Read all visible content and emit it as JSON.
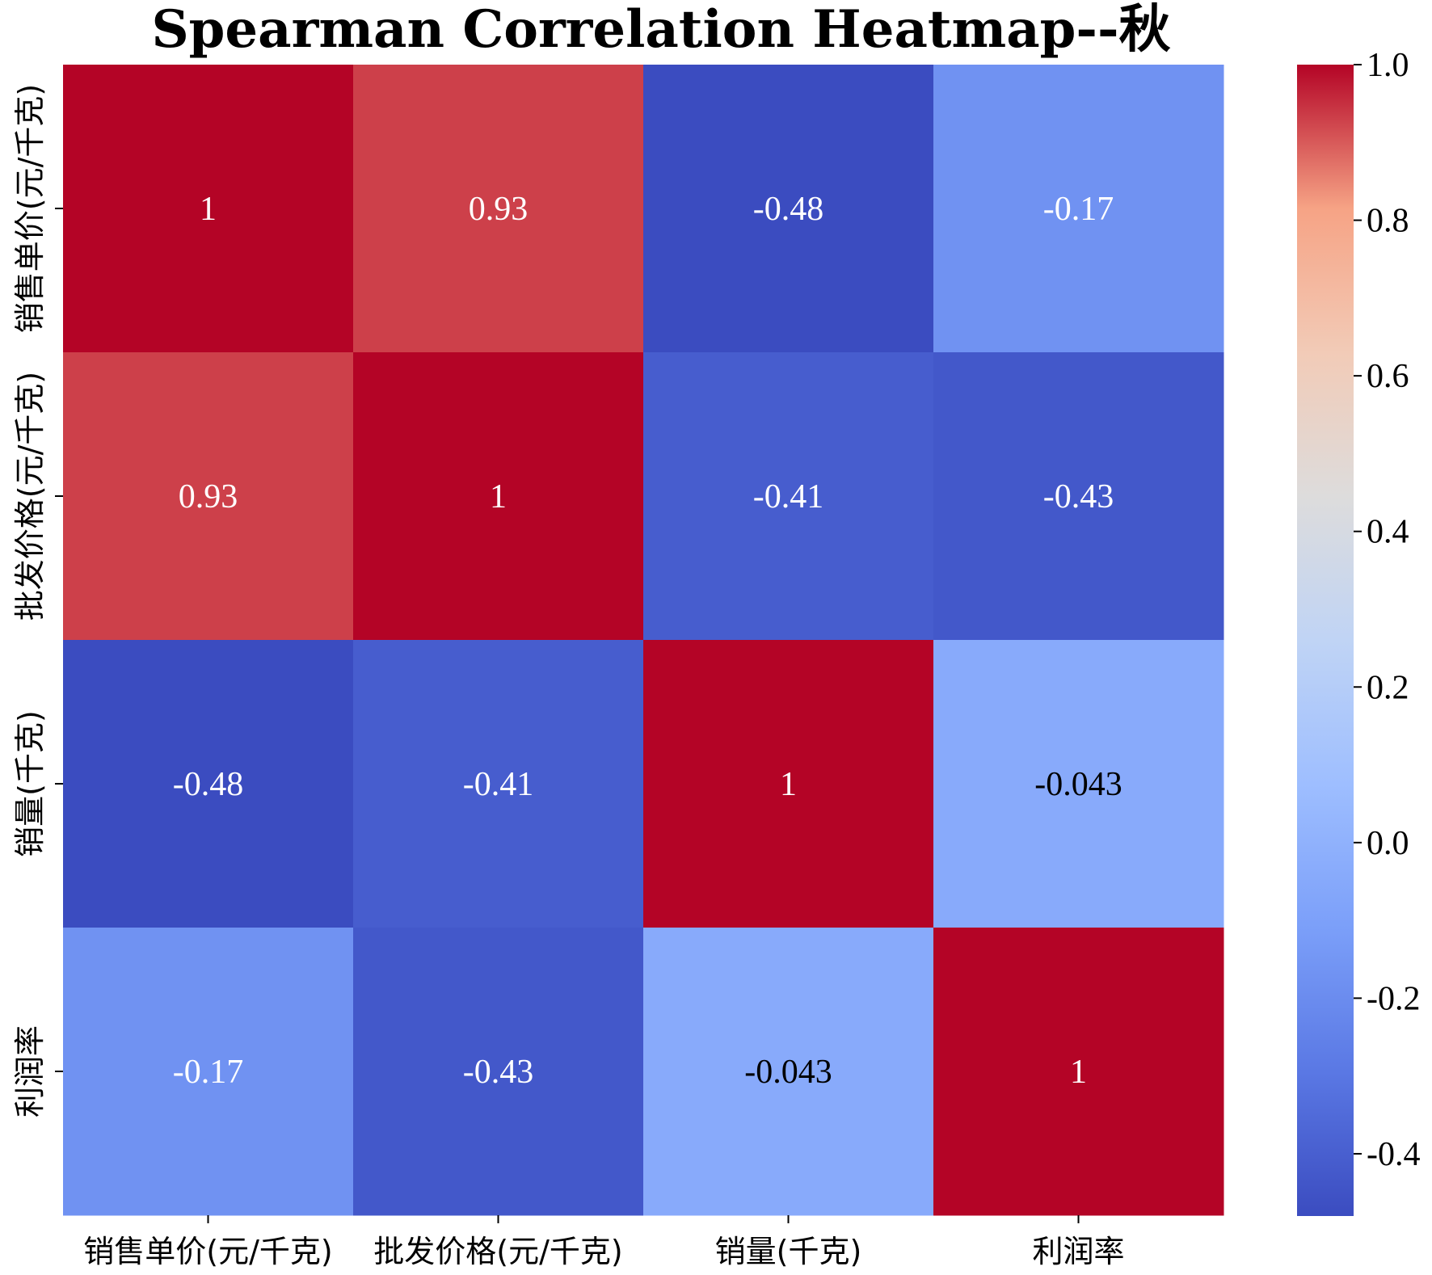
{
  "chart_data": {
    "type": "heatmap",
    "title": "Spearman Correlation Heatmap--秋",
    "row_labels": [
      "销售单价(元/千克)",
      "批发价格(元/千克)",
      "销量(千克)",
      "利润率"
    ],
    "col_labels": [
      "销售单价(元/千克)",
      "批发价格(元/千克)",
      "销量(千克)",
      "利润率"
    ],
    "values": [
      [
        1,
        0.93,
        -0.48,
        -0.17
      ],
      [
        0.93,
        1,
        -0.41,
        -0.43
      ],
      [
        -0.48,
        -0.41,
        1,
        -0.043
      ],
      [
        -0.17,
        -0.43,
        -0.043,
        1
      ]
    ],
    "cell_labels": [
      [
        "1",
        "0.93",
        "-0.48",
        "-0.17"
      ],
      [
        "0.93",
        "1",
        "-0.41",
        "-0.43"
      ],
      [
        "-0.48",
        "-0.41",
        "1",
        "-0.043"
      ],
      [
        "-0.17",
        "-0.43",
        "-0.043",
        "1"
      ]
    ],
    "colormap": "coolwarm",
    "colorbar": {
      "vmin": -0.48,
      "vmax": 1.0,
      "ticks": [
        1.0,
        0.8,
        0.6,
        0.4,
        0.2,
        0.0,
        -0.2,
        -0.4
      ],
      "tick_labels": [
        "1.0",
        "0.8",
        "0.6",
        "0.4",
        "0.2",
        "0.0",
        "-0.2",
        "-0.4"
      ],
      "position": "right"
    }
  }
}
